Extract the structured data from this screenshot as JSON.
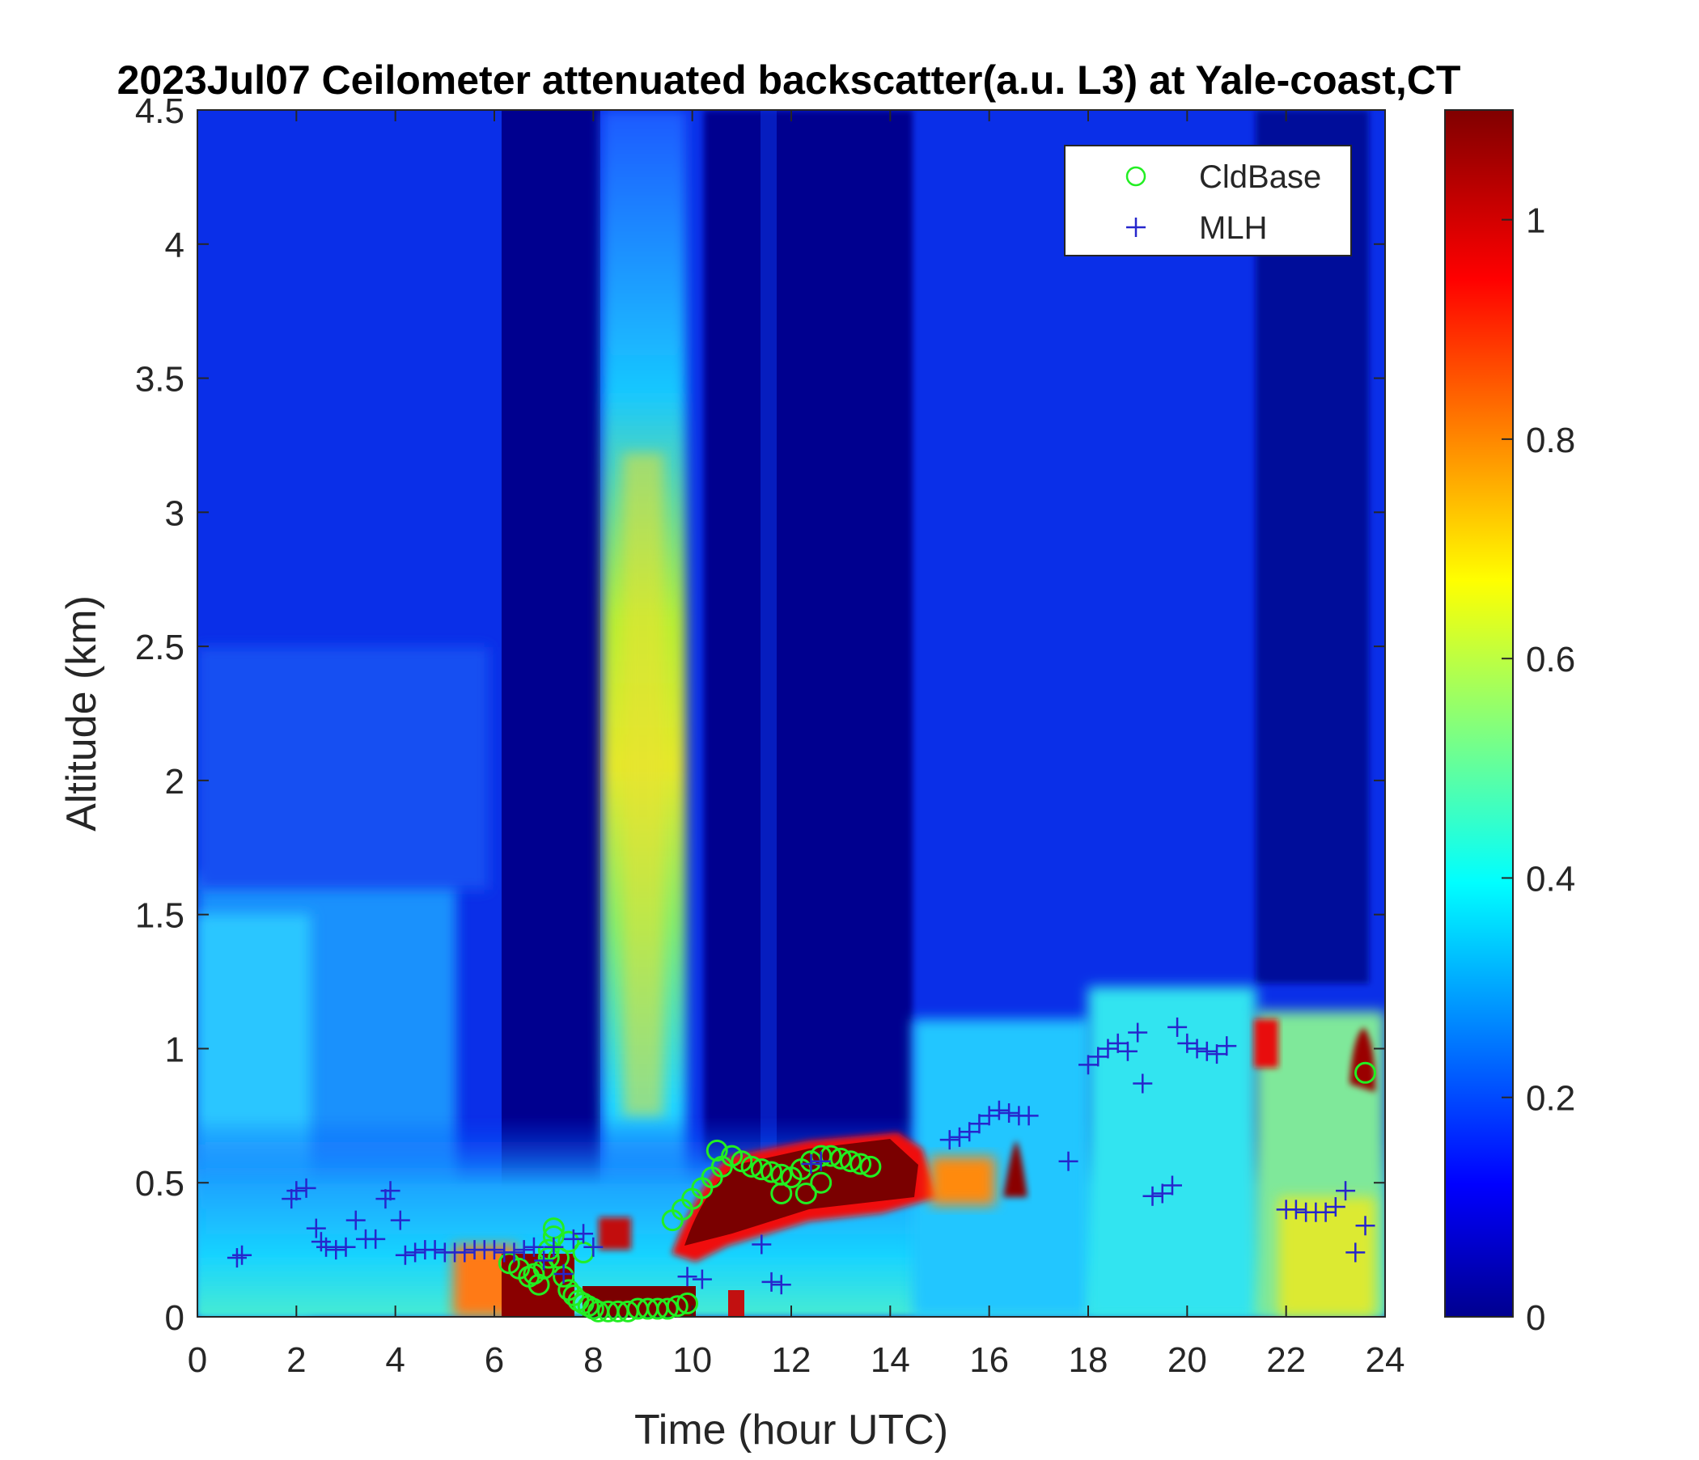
{
  "chart_data": {
    "type": "heatmap",
    "title": "2023Jul07 Ceilometer attenuated backscatter(a.u. L3) at Yale-coast,CT",
    "xlabel": "Time (hour UTC)",
    "ylabel": "Altitude (km)",
    "xlim": [
      0,
      24
    ],
    "ylim": [
      0,
      4.5
    ],
    "xticks": [
      "0",
      "2",
      "4",
      "6",
      "8",
      "10",
      "12",
      "14",
      "16",
      "18",
      "20",
      "22",
      "24"
    ],
    "yticks": [
      "0",
      "0.5",
      "1",
      "1.5",
      "2",
      "2.5",
      "3",
      "3.5",
      "4",
      "4.5"
    ],
    "colorbar": {
      "colormap": "jet",
      "clim": [
        0,
        1.1
      ],
      "ticks": [
        "0",
        "0.2",
        "0.4",
        "0.6",
        "0.8",
        "1"
      ]
    },
    "legend": {
      "position": "top-right",
      "entries": [
        {
          "label": "CldBase",
          "marker": "circle",
          "color": "#22ee22"
        },
        {
          "label": "MLH",
          "marker": "plus",
          "color": "#2626cc"
        }
      ]
    },
    "series": [
      {
        "name": "CldBase",
        "x": [
          6.3,
          6.5,
          6.7,
          6.9,
          7.0,
          7.1,
          7.2,
          7.3,
          7.4,
          7.5,
          7.6,
          7.7,
          7.8,
          7.9,
          8.0,
          8.1,
          8.3,
          8.5,
          8.7,
          8.9,
          9.1,
          9.3,
          9.5,
          9.7,
          9.9,
          7.2,
          7.5,
          7.8,
          7.1,
          6.8,
          9.6,
          9.8,
          10.0,
          10.2,
          10.4,
          10.6,
          10.8,
          11.0,
          11.2,
          11.4,
          11.6,
          11.8,
          12.0,
          12.2,
          12.4,
          12.6,
          12.8,
          13.0,
          13.2,
          13.4,
          13.6,
          11.8,
          12.3,
          12.6,
          10.5,
          23.6
        ],
        "y": [
          0.2,
          0.18,
          0.15,
          0.12,
          0.18,
          0.25,
          0.3,
          0.22,
          0.15,
          0.1,
          0.08,
          0.06,
          0.05,
          0.04,
          0.03,
          0.02,
          0.02,
          0.02,
          0.02,
          0.03,
          0.03,
          0.03,
          0.03,
          0.04,
          0.05,
          0.33,
          0.28,
          0.24,
          0.22,
          0.16,
          0.36,
          0.4,
          0.44,
          0.48,
          0.52,
          0.56,
          0.6,
          0.58,
          0.56,
          0.55,
          0.54,
          0.53,
          0.52,
          0.55,
          0.58,
          0.6,
          0.6,
          0.59,
          0.58,
          0.57,
          0.56,
          0.46,
          0.46,
          0.5,
          0.62,
          0.91
        ]
      },
      {
        "name": "MLH",
        "x": [
          0.8,
          0.9,
          1.9,
          2.0,
          2.2,
          2.4,
          2.5,
          2.6,
          2.8,
          3.0,
          3.2,
          3.4,
          3.6,
          3.8,
          3.9,
          4.1,
          4.2,
          4.4,
          4.6,
          4.8,
          5.0,
          5.2,
          5.4,
          5.6,
          5.8,
          6.0,
          6.2,
          6.4,
          6.6,
          6.8,
          7.0,
          7.2,
          7.4,
          7.6,
          7.8,
          8.0,
          9.9,
          10.2,
          11.4,
          11.6,
          11.8,
          12.4,
          12.6,
          15.2,
          15.4,
          15.6,
          15.8,
          16.0,
          16.2,
          16.4,
          16.6,
          16.8,
          17.6,
          18.0,
          18.2,
          18.4,
          18.6,
          18.8,
          19.0,
          19.1,
          19.3,
          19.5,
          19.7,
          19.8,
          20.0,
          20.2,
          20.4,
          20.6,
          20.8,
          22.0,
          22.2,
          22.4,
          22.6,
          22.8,
          23.0,
          23.2,
          23.4,
          23.6
        ],
        "y": [
          0.22,
          0.23,
          0.44,
          0.47,
          0.48,
          0.33,
          0.28,
          0.26,
          0.25,
          0.26,
          0.36,
          0.29,
          0.29,
          0.44,
          0.47,
          0.36,
          0.23,
          0.24,
          0.25,
          0.25,
          0.24,
          0.24,
          0.24,
          0.25,
          0.25,
          0.25,
          0.24,
          0.24,
          0.25,
          0.26,
          0.21,
          0.26,
          0.16,
          0.29,
          0.31,
          0.26,
          0.15,
          0.14,
          0.27,
          0.13,
          0.12,
          0.57,
          0.58,
          0.66,
          0.67,
          0.69,
          0.72,
          0.75,
          0.77,
          0.76,
          0.75,
          0.75,
          0.58,
          0.94,
          0.97,
          1.0,
          1.02,
          0.99,
          1.06,
          0.87,
          0.45,
          0.46,
          0.49,
          1.08,
          1.02,
          1.0,
          0.99,
          0.98,
          1.01,
          0.4,
          0.4,
          0.39,
          0.39,
          0.39,
          0.41,
          0.47,
          0.24,
          0.34
        ]
      }
    ]
  }
}
